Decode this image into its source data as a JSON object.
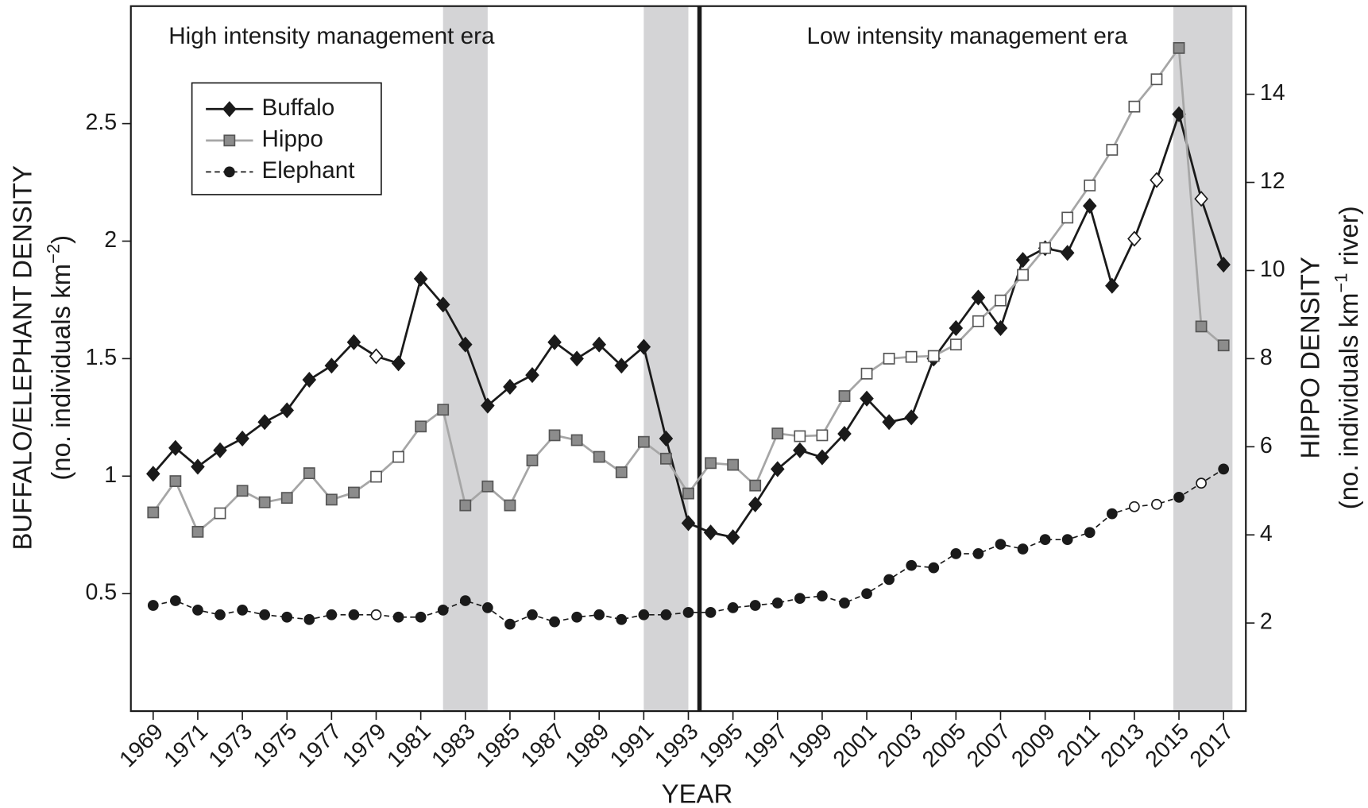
{
  "chart_data": {
    "type": "line",
    "x_label": "YEAR",
    "y_label": "BUFFALO/ELEPHANT DENSITY",
    "y_sublabel": [
      "(no. individuals km",
      "−2",
      ")"
    ],
    "y2_label": "HIPPO DENSITY",
    "y2_sublabel": [
      "(no. individuals km",
      "−1",
      " river)"
    ],
    "annotations": [
      {
        "text": "High intensity management era",
        "x": 1977
      },
      {
        "text": "Low intensity management era",
        "x": 2005.5
      }
    ],
    "shaded_regions": [
      [
        1982,
        1984
      ],
      [
        1991,
        1993
      ],
      [
        2014.75,
        2017.4
      ]
    ],
    "divider": 1993.5,
    "xlim": [
      1968,
      2018
    ],
    "xticks": [
      1969,
      1971,
      1973,
      1975,
      1977,
      1979,
      1981,
      1983,
      1985,
      1987,
      1989,
      1991,
      1993,
      1995,
      1997,
      1999,
      2001,
      2003,
      2005,
      2007,
      2009,
      2011,
      2013,
      2015,
      2017
    ],
    "ylim": [
      0,
      3
    ],
    "yticks": [
      0.5,
      1,
      1.5,
      2,
      2.5
    ],
    "y2lim": [
      0,
      16
    ],
    "y2ticks": [
      2,
      4,
      6,
      8,
      10,
      12,
      14
    ],
    "x": [
      1969,
      1970,
      1971,
      1972,
      1973,
      1974,
      1975,
      1976,
      1977,
      1978,
      1979,
      1980,
      1981,
      1982,
      1983,
      1984,
      1985,
      1986,
      1987,
      1988,
      1989,
      1990,
      1991,
      1992,
      1993,
      1994,
      1995,
      1996,
      1997,
      1998,
      1999,
      2000,
      2001,
      2002,
      2003,
      2004,
      2005,
      2006,
      2007,
      2008,
      2009,
      2010,
      2011,
      2012,
      2013,
      2014,
      2015,
      2016,
      2017
    ],
    "series": [
      {
        "name": "Buffalo",
        "color": "#1a1a1a",
        "marker": "diamond",
        "marker_color": "#1a1a1a",
        "dashed": false,
        "axis": "y",
        "hollow_years": [
          1979,
          2013,
          2014,
          2016
        ],
        "values": [
          1.01,
          1.12,
          1.04,
          1.11,
          1.16,
          1.23,
          1.28,
          1.41,
          1.47,
          1.57,
          1.51,
          1.48,
          1.84,
          1.73,
          1.56,
          1.3,
          1.38,
          1.43,
          1.57,
          1.5,
          1.56,
          1.47,
          1.55,
          1.16,
          0.8,
          0.76,
          0.74,
          0.88,
          1.03,
          1.11,
          1.08,
          1.18,
          1.33,
          1.23,
          1.25,
          1.5,
          1.63,
          1.76,
          1.63,
          1.92,
          1.97,
          1.95,
          2.15,
          1.81,
          2.01,
          2.26,
          2.54,
          2.18,
          1.9
        ]
      },
      {
        "name": "Hippo",
        "color": "#a6a6a6",
        "marker": "square",
        "marker_color": "#8c8c8c",
        "dashed": false,
        "axis": "y2",
        "hollow_years": [
          1972,
          1979,
          1980,
          1998,
          1999,
          2001,
          2002,
          2003,
          2004,
          2005,
          2006,
          2007,
          2008,
          2009,
          2010,
          2011,
          2012,
          2013,
          2014
        ],
        "values": [
          4.51,
          5.22,
          4.07,
          4.49,
          5.0,
          4.74,
          4.84,
          5.4,
          4.8,
          4.96,
          5.32,
          5.77,
          6.46,
          6.84,
          4.67,
          5.1,
          4.67,
          5.69,
          6.26,
          6.15,
          5.77,
          5.42,
          6.11,
          5.73,
          4.94,
          5.63,
          5.59,
          5.12,
          6.3,
          6.24,
          6.26,
          7.15,
          7.66,
          8.0,
          8.04,
          8.06,
          8.32,
          8.85,
          9.32,
          9.9,
          10.51,
          11.2,
          11.93,
          12.74,
          13.72,
          14.34,
          15.05,
          8.73,
          8.3
        ]
      },
      {
        "name": "Elephant",
        "color": "#1a1a1a",
        "marker": "circle",
        "marker_color": "#1a1a1a",
        "dashed": true,
        "axis": "y",
        "hollow_years": [
          1979,
          2013,
          2014,
          2016
        ],
        "values": [
          0.45,
          0.47,
          0.43,
          0.41,
          0.43,
          0.41,
          0.4,
          0.39,
          0.41,
          0.41,
          0.41,
          0.4,
          0.4,
          0.43,
          0.47,
          0.44,
          0.37,
          0.41,
          0.38,
          0.4,
          0.41,
          0.39,
          0.41,
          0.41,
          0.42,
          0.42,
          0.44,
          0.45,
          0.46,
          0.48,
          0.49,
          0.46,
          0.5,
          0.56,
          0.62,
          0.61,
          0.67,
          0.67,
          0.71,
          0.69,
          0.73,
          0.73,
          0.76,
          0.84,
          0.87,
          0.88,
          0.91,
          0.97,
          1.03
        ]
      }
    ]
  }
}
